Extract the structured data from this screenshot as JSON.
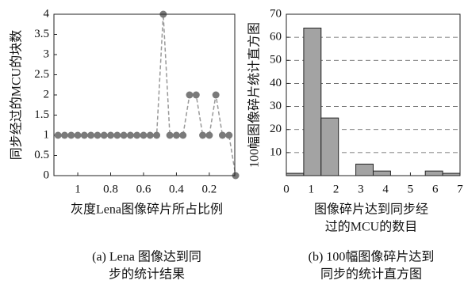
{
  "chart_data": [
    {
      "type": "line",
      "x": [
        1.12,
        1.08,
        1.04,
        1.0,
        0.96,
        0.92,
        0.88,
        0.84,
        0.8,
        0.76,
        0.72,
        0.68,
        0.64,
        0.6,
        0.56,
        0.52,
        0.48,
        0.44,
        0.4,
        0.36,
        0.32,
        0.28,
        0.24,
        0.2,
        0.16,
        0.12,
        0.08,
        0.04
      ],
      "values": [
        1,
        1,
        1,
        1,
        1,
        1,
        1,
        1,
        1,
        1,
        1,
        1,
        1,
        1,
        1,
        1,
        4,
        1,
        1,
        1,
        2,
        2,
        1,
        1,
        2,
        1,
        1,
        0
      ],
      "color": "#7a7a7a",
      "xlim": [
        1.145,
        0.045
      ],
      "xticks": [
        1,
        0.8,
        0.6,
        0.4,
        0.2
      ],
      "ylim": [
        0,
        4
      ],
      "yticks": [
        0,
        0.5,
        1,
        1.5,
        2,
        2.5,
        3,
        3.5,
        4
      ],
      "grid": false,
      "x_label": [
        "灰度Lena图像碎片所占比例"
      ],
      "y_label": "同步经过的MCU的块数",
      "caption": [
        "(a) Lena 图像达到同",
        "步的统计结果"
      ]
    },
    {
      "type": "histogram",
      "bins": [
        0,
        0.7,
        1.4,
        2.1,
        2.8,
        3.5,
        4.2,
        4.9,
        5.6,
        6.3,
        7.0
      ],
      "values": [
        1,
        64,
        25,
        0,
        5,
        2,
        0,
        0,
        2,
        1
      ],
      "color": "#a3a3a3",
      "xlim": [
        0,
        7
      ],
      "xticks": [
        0,
        1,
        2,
        3,
        4,
        5,
        6,
        7
      ],
      "ylim": [
        0,
        70
      ],
      "yticks": [
        10,
        20,
        30,
        40,
        50,
        60,
        70
      ],
      "grid": true,
      "x_label": [
        "图像碎片达到同步经",
        "过的MCU的数目"
      ],
      "y_label": "100幅图像碎片统计直方图",
      "caption": [
        "(b) 100幅图像碎片达到",
        "同步的统计直方图"
      ]
    }
  ]
}
